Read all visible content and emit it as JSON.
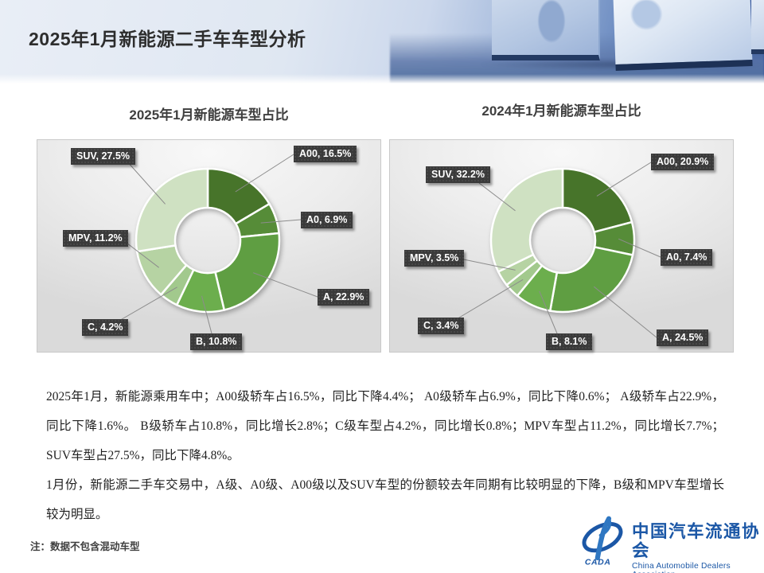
{
  "header": {
    "title": "2025年1月新能源二手车车型分析"
  },
  "charts": [
    {
      "title": "2025年1月新能源车型占比"
    },
    {
      "title": "2024年1月新能源车型占比"
    }
  ],
  "chart_data": [
    {
      "type": "pie",
      "subtype": "donut",
      "title": "2025年1月新能源车型占比",
      "categories": [
        "A00",
        "A0",
        "A",
        "B",
        "C",
        "MPV",
        "SUV"
      ],
      "values": [
        16.5,
        6.9,
        22.9,
        10.8,
        4.2,
        11.2,
        27.5
      ],
      "unit": "%",
      "start_angle_deg": 0,
      "direction": "clockwise",
      "label_format": "{category}, {value}%",
      "colors": [
        "#47742a",
        "#568c38",
        "#5f9e42",
        "#6cae4d",
        "#a2c98d",
        "#b6d3a3",
        "#cfe1c2"
      ],
      "legend": "none"
    },
    {
      "type": "pie",
      "subtype": "donut",
      "title": "2024年1月新能源车型占比",
      "categories": [
        "A00",
        "A0",
        "A",
        "B",
        "C",
        "MPV",
        "SUV"
      ],
      "values": [
        20.9,
        7.4,
        24.5,
        8.1,
        3.4,
        3.5,
        32.2
      ],
      "unit": "%",
      "start_angle_deg": 0,
      "direction": "clockwise",
      "label_format": "{category}, {value}%",
      "colors": [
        "#47742a",
        "#568c38",
        "#5f9e42",
        "#6cae4d",
        "#a2c98d",
        "#b6d3a3",
        "#cfe1c2"
      ],
      "legend": "none"
    }
  ],
  "analysis": {
    "paragraph1": "2025年1月，新能源乘用车中；A00级轿车占16.5%，同比下降4.4%； A0级轿车占6.9%，同比下降0.6%； A级轿车占22.9%，同比下降1.6%。 B级轿车占10.8%，同比增长2.8%；C级车型占4.2%，同比增长0.8%；MPV车型占11.2%，同比增长7.7%； SUV车型占27.5%，同比下降4.8%。",
    "paragraph2": "1月份，新能源二手车交易中，A级、A0级、A00级以及SUV车型的份额较去年同期有比较明显的下降，B级和MPV车型增长较为明显。"
  },
  "note": "注：数据不包含混动车型",
  "logo": {
    "acronym": "CADA",
    "name_cn": "中国汽车流通协会",
    "name_en": "China Automobile Dealers Association",
    "color": "#1b57a6"
  }
}
